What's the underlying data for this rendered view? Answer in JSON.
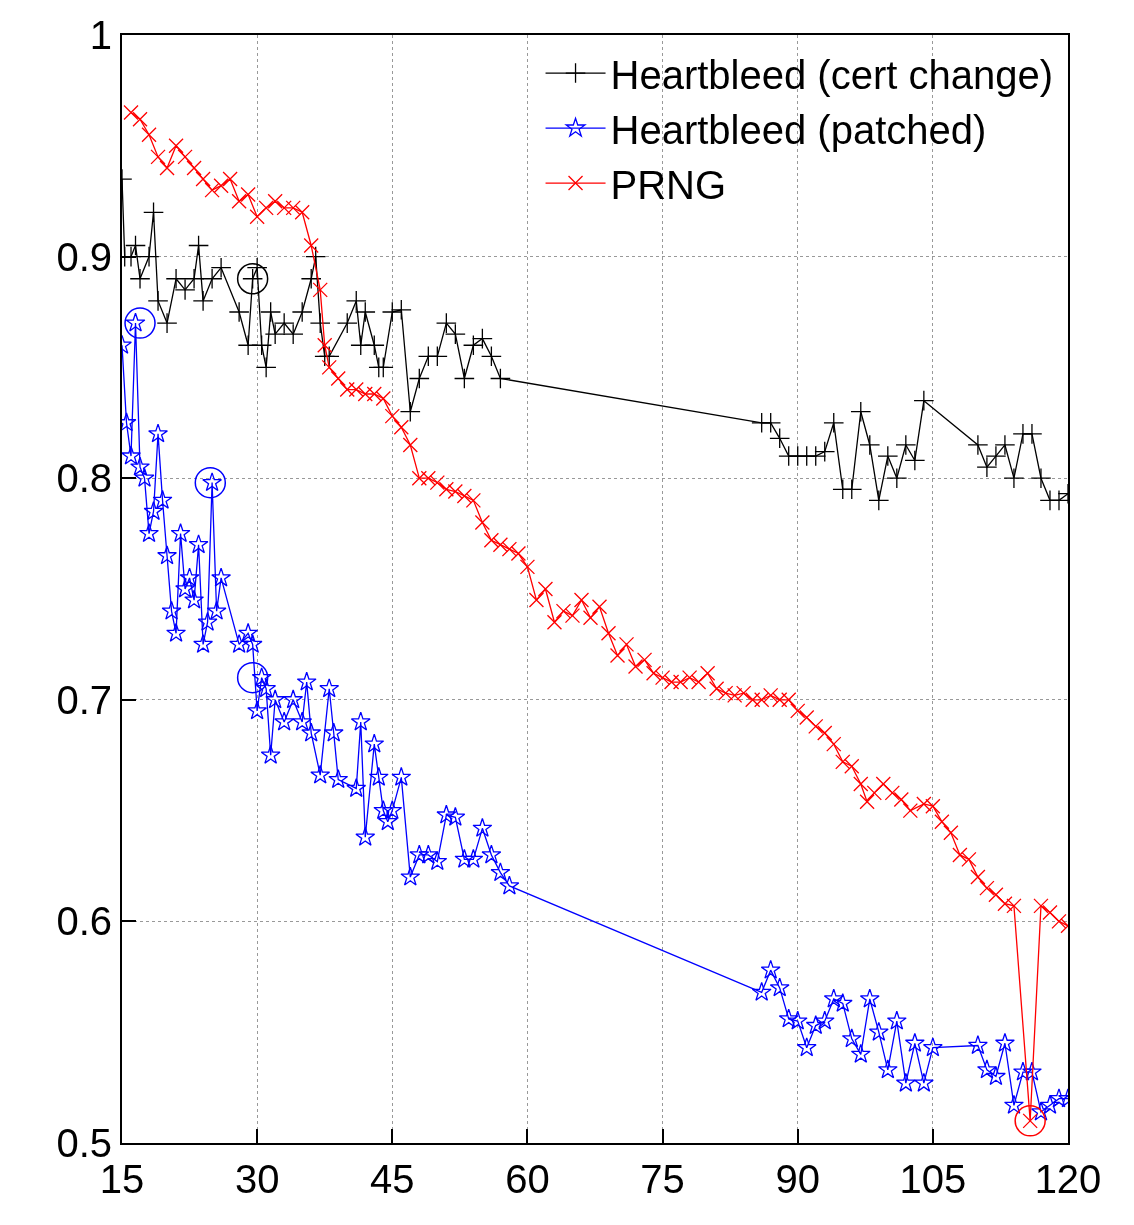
{
  "chart_data": {
    "type": "line",
    "xlim": [
      15,
      120
    ],
    "xticks": [
      15,
      30,
      45,
      60,
      75,
      90,
      105,
      120
    ],
    "ylim": [
      0.5,
      1
    ],
    "yticks": [
      0.5,
      0.6,
      0.7,
      0.8,
      0.9,
      1
    ],
    "grid": true,
    "legend": "top right",
    "line_style": "solid",
    "series": [
      {
        "name": "Heartbleed (cert change)",
        "color": "#000000",
        "marker": "cross",
        "x": [
          15,
          15.3,
          16,
          16.5,
          17,
          18,
          18.5,
          19,
          20,
          21,
          22,
          23,
          23.5,
          24,
          25,
          26,
          28,
          29,
          29.5,
          30,
          30.5,
          31,
          31.5,
          32,
          33,
          34,
          35,
          36,
          36.5,
          37,
          37.5,
          38,
          40,
          41,
          41.5,
          42,
          43,
          43.5,
          44,
          45,
          46,
          47,
          48,
          49,
          50,
          51,
          52,
          53,
          54,
          55,
          56,
          57,
          86,
          87,
          88,
          89,
          90,
          91,
          92,
          93,
          94,
          95,
          96,
          97,
          98,
          99,
          100,
          101,
          102,
          103,
          104,
          110,
          111,
          112,
          113,
          114,
          115,
          116,
          117,
          118,
          119,
          120
        ],
        "values": [
          0.935,
          0.9,
          0.9,
          0.905,
          0.89,
          0.9,
          0.92,
          0.88,
          0.87,
          0.89,
          0.885,
          0.89,
          0.905,
          0.88,
          0.89,
          0.895,
          0.875,
          0.86,
          0.89,
          0.895,
          0.86,
          0.85,
          0.875,
          0.865,
          0.87,
          0.865,
          0.875,
          0.89,
          0.9,
          0.87,
          0.855,
          0.855,
          0.87,
          0.88,
          0.86,
          0.875,
          0.86,
          0.85,
          0.85,
          0.875,
          0.876,
          0.83,
          0.845,
          0.855,
          0.855,
          0.87,
          0.865,
          0.845,
          0.86,
          0.863,
          0.855,
          0.845,
          0.825,
          0.825,
          0.818,
          0.81,
          0.81,
          0.81,
          0.81,
          0.812,
          0.825,
          0.795,
          0.795,
          0.83,
          0.815,
          0.79,
          0.81,
          0.8,
          0.815,
          0.808,
          0.835,
          0.815,
          0.805,
          0.81,
          0.815,
          0.8,
          0.82,
          0.82,
          0.8,
          0.79,
          0.79,
          0.793
        ]
      },
      {
        "name": "Heartbleed (patched)",
        "color": "#0000ff",
        "marker": "star",
        "x": [
          15,
          15.5,
          16,
          16.5,
          17,
          17.5,
          18,
          18.5,
          19,
          19.5,
          20,
          20.5,
          21,
          21.5,
          22,
          22.5,
          23,
          23.5,
          24,
          24.5,
          25,
          25.5,
          26,
          28,
          29,
          29.5,
          30,
          30.5,
          31,
          31.5,
          32,
          33,
          34,
          35,
          35.5,
          36,
          37,
          38,
          38.5,
          39,
          41,
          41.5,
          42,
          43,
          43.5,
          44,
          44.5,
          45,
          46,
          47,
          48,
          49,
          50,
          51,
          52,
          53,
          54,
          55,
          56,
          57,
          58,
          86,
          87,
          88,
          89,
          90,
          91,
          92,
          93,
          94,
          95,
          96,
          97,
          98,
          99,
          100,
          101,
          102,
          103,
          104,
          105,
          110,
          111,
          112,
          113,
          114,
          115,
          116,
          117,
          118,
          119,
          120
        ],
        "values": [
          0.86,
          0.825,
          0.81,
          0.87,
          0.805,
          0.8,
          0.775,
          0.785,
          0.82,
          0.79,
          0.765,
          0.74,
          0.73,
          0.775,
          0.75,
          0.755,
          0.745,
          0.77,
          0.725,
          0.735,
          0.798,
          0.74,
          0.755,
          0.725,
          0.73,
          0.725,
          0.695,
          0.71,
          0.705,
          0.675,
          0.7,
          0.69,
          0.7,
          0.69,
          0.708,
          0.685,
          0.666,
          0.705,
          0.685,
          0.664,
          0.66,
          0.69,
          0.638,
          0.68,
          0.665,
          0.65,
          0.645,
          0.65,
          0.665,
          0.62,
          0.63,
          0.63,
          0.627,
          0.648,
          0.647,
          0.628,
          0.628,
          0.642,
          0.63,
          0.622,
          0.616,
          0.568,
          0.578,
          0.57,
          0.556,
          0.555,
          0.543,
          0.553,
          0.555,
          0.565,
          0.563,
          0.547,
          0.54,
          0.565,
          0.55,
          0.533,
          0.555,
          0.527,
          0.545,
          0.527,
          0.543,
          0.544,
          0.533,
          0.53,
          0.545,
          0.517,
          0.532,
          0.532,
          0.514,
          0.517,
          0.52,
          0.52
        ]
      },
      {
        "name": "PRNG",
        "color": "#ff0000",
        "marker": "x",
        "x": [
          16,
          17,
          18,
          19,
          20,
          21,
          22,
          23,
          24,
          25,
          26,
          27,
          28,
          29,
          30,
          31,
          32,
          33,
          34,
          35,
          36,
          37,
          37.5,
          38,
          39,
          40,
          41,
          42,
          43,
          44,
          45,
          46,
          47,
          48,
          49,
          50,
          51,
          52,
          53,
          54,
          55,
          56,
          57,
          58,
          59,
          60,
          61,
          62,
          63,
          64,
          65,
          66,
          67,
          68,
          69,
          70,
          71,
          72,
          73,
          74,
          75,
          76,
          77,
          78,
          79,
          80,
          81,
          82,
          83,
          84,
          85,
          86,
          87,
          88,
          89,
          90,
          91,
          92,
          93,
          94,
          95,
          96,
          97,
          97.7,
          98.5,
          99.5,
          100.5,
          101.5,
          102.5,
          104,
          105,
          106,
          107,
          108,
          109,
          110,
          111,
          112,
          113,
          114,
          115.8,
          117,
          118,
          119,
          120
        ],
        "values": [
          0.965,
          0.962,
          0.955,
          0.945,
          0.94,
          0.95,
          0.945,
          0.94,
          0.935,
          0.93,
          0.932,
          0.935,
          0.925,
          0.928,
          0.918,
          0.922,
          0.925,
          0.922,
          0.922,
          0.92,
          0.905,
          0.885,
          0.86,
          0.85,
          0.845,
          0.84,
          0.84,
          0.838,
          0.838,
          0.836,
          0.828,
          0.823,
          0.815,
          0.8,
          0.8,
          0.798,
          0.795,
          0.794,
          0.792,
          0.79,
          0.78,
          0.772,
          0.77,
          0.768,
          0.766,
          0.76,
          0.745,
          0.75,
          0.735,
          0.74,
          0.738,
          0.745,
          0.737,
          0.742,
          0.73,
          0.72,
          0.725,
          0.715,
          0.718,
          0.712,
          0.71,
          0.708,
          0.708,
          0.71,
          0.708,
          0.712,
          0.705,
          0.703,
          0.702,
          0.703,
          0.7,
          0.7,
          0.702,
          0.7,
          0.7,
          0.695,
          0.692,
          0.688,
          0.685,
          0.68,
          0.672,
          0.67,
          0.662,
          0.654,
          0.658,
          0.662,
          0.658,
          0.655,
          0.65,
          0.653,
          0.652,
          0.645,
          0.64,
          0.63,
          0.628,
          0.62,
          0.615,
          0.612,
          0.608,
          0.607,
          0.51,
          0.607,
          0.604,
          0.6,
          0.598
        ]
      },
      {
        "type": "scatter",
        "marker": "circle",
        "colors": [
          "#000000",
          "#0000ff",
          "#0000ff",
          "#0000ff",
          "#ff0000"
        ],
        "x": [
          29.5,
          17,
          24.8,
          29.5,
          115.8
        ],
        "values": [
          0.89,
          0.87,
          0.798,
          0.71,
          0.51
        ]
      }
    ]
  }
}
